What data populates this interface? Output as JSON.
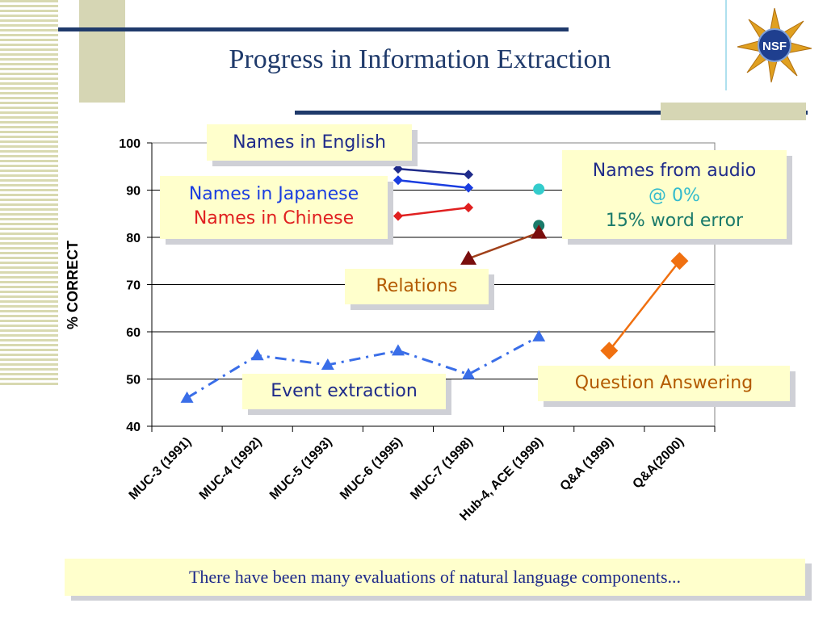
{
  "slide": {
    "title": "Progress in Information Extraction",
    "footer": "There have been many evaluations of natural language components...",
    "logo_text": "NSF"
  },
  "colors": {
    "title": "#1f3a6b",
    "navy": "#1f2b8a",
    "japanese": "#1a3de0",
    "chinese": "#e02020",
    "audio_zero": "#33cccc",
    "audio_15": "#1a7a6a",
    "relations": "#7a0e0e",
    "qa": "#f07010",
    "events": "#3a6ee8"
  },
  "callouts": {
    "english": "Names in English",
    "japanese": "Names in Japanese",
    "chinese": "Names in Chinese",
    "audio_title": "Names from audio",
    "audio_zero": "@ 0%",
    "audio_15": "15% word error",
    "relations": "Relations",
    "events": "Event extraction",
    "qa": "Question Answering"
  },
  "chart_data": {
    "type": "line",
    "title": "",
    "xlabel": "",
    "ylabel": "% CORRECT",
    "ylim": [
      40,
      100
    ],
    "yticks": [
      40,
      50,
      60,
      70,
      80,
      90,
      100
    ],
    "grid": true,
    "categories": [
      "MUC-3 (1991)",
      "MUC-4 (1992)",
      "MUC-5 (1993)",
      "MUC-6 (1995)",
      "MUC-7 (1998)",
      "Hub-4, ACE (1999)",
      "Q&A (1999)",
      "Q&A(2000)"
    ],
    "series": [
      {
        "name": "Names in English",
        "marker": "diamond",
        "color": "#1f2b8a",
        "line": "solid",
        "points": [
          [
            3,
            94.5
          ],
          [
            4,
            93.3
          ]
        ]
      },
      {
        "name": "Names in Japanese",
        "marker": "diamond",
        "color": "#1a3de0",
        "line": "solid",
        "points": [
          [
            3,
            92.1
          ],
          [
            4,
            90.5
          ]
        ]
      },
      {
        "name": "Names in Chinese",
        "marker": "diamond",
        "color": "#e02020",
        "line": "solid",
        "points": [
          [
            3,
            84.5
          ],
          [
            4,
            86.3
          ]
        ]
      },
      {
        "name": "@ 0%",
        "marker": "circle",
        "color": "#33cccc",
        "line": "none",
        "points": [
          [
            5,
            90.2
          ]
        ]
      },
      {
        "name": "15% word error",
        "marker": "circle",
        "color": "#1a7a6a",
        "line": "none",
        "points": [
          [
            5,
            82.5
          ]
        ]
      },
      {
        "name": "Relations",
        "marker": "triangle",
        "color": "#7a0e0e",
        "linecolor": "#a0401a",
        "line": "solid",
        "points": [
          [
            4,
            75.5
          ],
          [
            5,
            81
          ]
        ]
      },
      {
        "name": "Question Answering",
        "marker": "diamond",
        "color": "#f07010",
        "line": "solid",
        "points": [
          [
            6,
            56
          ],
          [
            7,
            75
          ]
        ]
      },
      {
        "name": "Event extraction",
        "marker": "triangle",
        "color": "#3a6ee8",
        "line": "dashdot",
        "points": [
          [
            0,
            46
          ],
          [
            1,
            55
          ],
          [
            2,
            53
          ],
          [
            3,
            56
          ],
          [
            4,
            51
          ],
          [
            5,
            59
          ]
        ]
      }
    ]
  }
}
